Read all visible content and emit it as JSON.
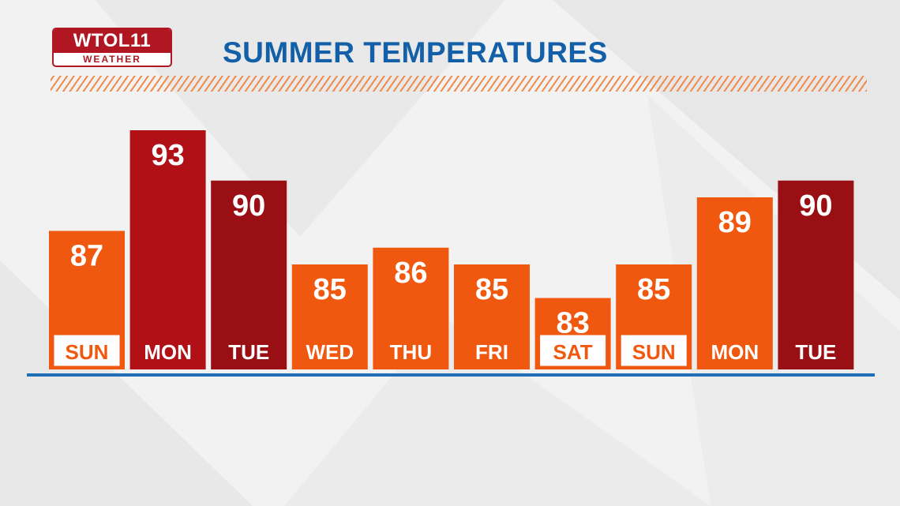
{
  "logo": {
    "top": "WTOL11",
    "bottom": "WEATHER"
  },
  "chart_data": {
    "type": "bar",
    "title": "SUMMER TEMPERATURES",
    "categories": [
      "SUN",
      "MON",
      "TUE",
      "WED",
      "THU",
      "FRI",
      "SAT",
      "SUN",
      "MON",
      "TUE"
    ],
    "values": [
      87,
      93,
      90,
      85,
      86,
      85,
      83,
      85,
      89,
      90
    ],
    "weekend_boxed": [
      true,
      false,
      false,
      false,
      false,
      false,
      true,
      true,
      false,
      false
    ],
    "bar_colors": [
      "#f1580f",
      "#b11116",
      "#9a0f14",
      "#f1580f",
      "#f1580f",
      "#f1580f",
      "#f1580f",
      "#f1580f",
      "#f1580f",
      "#9a0f14"
    ],
    "baseline_color": "#1e6fb8",
    "grid": false,
    "legend": "none"
  },
  "colors": {
    "title": "#1460a8",
    "hatch": "#f08a4a",
    "logo": "#b01722"
  }
}
